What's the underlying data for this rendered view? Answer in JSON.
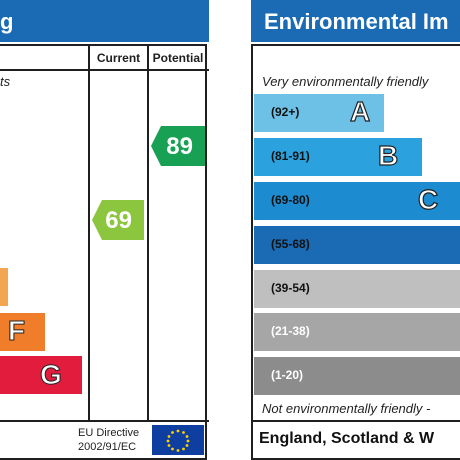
{
  "energy": {
    "title": "g",
    "col_current": "Current",
    "col_potential": "Potential",
    "top_text": "ts",
    "bands": [
      {
        "letter": "",
        "color": "#f2a651"
      },
      {
        "letter": "F",
        "color": "#ef7d29"
      },
      {
        "letter": "G",
        "color": "#e21c3d"
      }
    ],
    "current": {
      "value": "69",
      "color": "#8cc63f"
    },
    "potential": {
      "value": "89",
      "color": "#18a155"
    },
    "eu_line1": "EU Directive",
    "eu_line2": "2002/91/EC"
  },
  "environment": {
    "title": "Environmental Im",
    "top_text": "Very environmentally friendly",
    "bottom_text": "Not environmentally friendly -",
    "footer": "England, Scotland & W",
    "bands": [
      {
        "range": "(92+)",
        "letter": "A",
        "color": "#6ec1e6",
        "range_color": "#111111"
      },
      {
        "range": "(81-91)",
        "letter": "B",
        "color": "#2ba2dd",
        "range_color": "#111111"
      },
      {
        "range": "(69-80)",
        "letter": "C",
        "color": "#1c8bd0",
        "range_color": "#111111"
      },
      {
        "range": "(55-68)",
        "letter": "",
        "color": "#1a6bb4",
        "range_color": "#111111"
      },
      {
        "range": "(39-54)",
        "letter": "",
        "color": "#bfbfbf",
        "range_color": "#111111"
      },
      {
        "range": "(21-38)",
        "letter": "",
        "color": "#a6a6a6",
        "range_color": "#ffffff"
      },
      {
        "range": "(1-20)",
        "letter": "",
        "color": "#8c8c8c",
        "range_color": "#ffffff"
      }
    ]
  }
}
